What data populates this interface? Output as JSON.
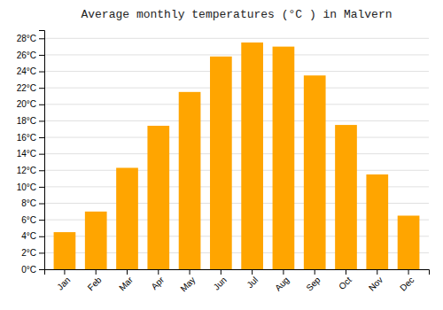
{
  "chart_data": {
    "type": "bar",
    "title": "Average monthly temperatures (°C ) in Malvern",
    "categories": [
      "Jan",
      "Feb",
      "Mar",
      "Apr",
      "May",
      "Jun",
      "Jul",
      "Aug",
      "Sep",
      "Oct",
      "Nov",
      "Dec"
    ],
    "values": [
      4.5,
      7.0,
      12.3,
      17.4,
      21.5,
      25.8,
      27.5,
      27.0,
      23.5,
      17.5,
      11.5,
      6.5
    ],
    "color": "#FFA500",
    "ylim": [
      0,
      29
    ],
    "yticks": [
      {
        "value": 0,
        "label": "0°C"
      },
      {
        "value": 2,
        "label": "2°C"
      },
      {
        "value": 4,
        "label": "4°C"
      },
      {
        "value": 6,
        "label": "6°C"
      },
      {
        "value": 8,
        "label": "8°C"
      },
      {
        "value": 10,
        "label": "10°C"
      },
      {
        "value": 12,
        "label": "12°C"
      },
      {
        "value": 14,
        "label": "14°C"
      },
      {
        "value": 16,
        "label": "16°C"
      },
      {
        "value": 18,
        "label": "18°C"
      },
      {
        "value": 20,
        "label": "20°C"
      },
      {
        "value": 22,
        "label": "22°C"
      },
      {
        "value": 24,
        "label": "24°C"
      },
      {
        "value": 26,
        "label": "26°C"
      },
      {
        "value": 28,
        "label": "28°C"
      }
    ],
    "grid": true
  }
}
